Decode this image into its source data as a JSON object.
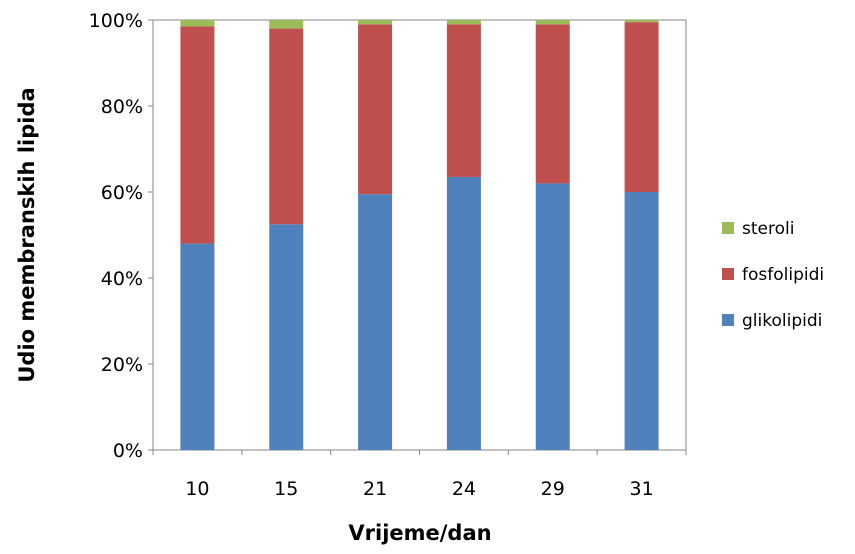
{
  "chart_data": {
    "type": "bar",
    "stacked": true,
    "categories": [
      "10",
      "15",
      "21",
      "24",
      "29",
      "31"
    ],
    "series": [
      {
        "name": "glikolipidi",
        "color": "#4F81BD",
        "values": [
          48,
          52.5,
          59.5,
          63.5,
          62,
          60
        ]
      },
      {
        "name": "fosfolipidi",
        "color": "#C0504D",
        "values": [
          50.5,
          45.5,
          39.5,
          35.5,
          37,
          39.5
        ]
      },
      {
        "name": "steroli",
        "color": "#9BBB59",
        "values": [
          1.5,
          2,
          1,
          1,
          1,
          0.5
        ]
      }
    ],
    "y_ticks": [
      "0%",
      "20%",
      "40%",
      "60%",
      "80%",
      "100%"
    ],
    "ylim": [
      0,
      100
    ],
    "xlabel": "Vrijeme/dan",
    "ylabel": "Udio membranskih lipida",
    "legend_position": "right",
    "legend_order": [
      "steroli",
      "fosfolipidi",
      "glikolipidi"
    ],
    "grid": false
  }
}
